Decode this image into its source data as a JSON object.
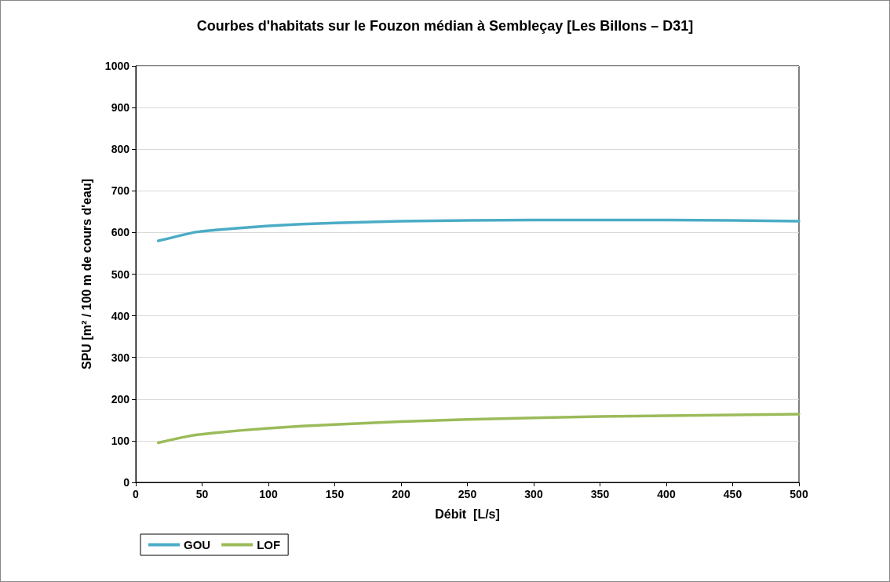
{
  "chart_data": {
    "type": "line",
    "title": "Courbes d'habitats sur le Fouzon médian à Sembleçay [Les Billons – D31]",
    "xlabel": "Débit  [L/s]",
    "ylabel": "SPU [m² / 100 m de cours d'eau]",
    "x": [
      17,
      25,
      35,
      45,
      60,
      80,
      100,
      125,
      150,
      200,
      250,
      300,
      350,
      400,
      450,
      500
    ],
    "series": [
      {
        "name": "GOU",
        "color": "#4bacc6",
        "values": [
          580,
          586,
          594,
          601,
          606,
          611,
          616,
          620,
          623,
          627,
          629,
          630,
          630,
          630,
          629,
          627
        ]
      },
      {
        "name": "LOF",
        "color": "#9bbb59",
        "values": [
          95,
          101,
          108,
          114,
          119,
          125,
          130,
          135,
          139,
          146,
          151,
          155,
          158,
          160,
          162,
          164
        ]
      }
    ],
    "xlim": [
      0,
      500
    ],
    "xticks": [
      0,
      50,
      100,
      150,
      200,
      250,
      300,
      350,
      400,
      450,
      500
    ],
    "ylim": [
      0,
      1000
    ],
    "yticks": [
      0,
      100,
      200,
      300,
      400,
      500,
      600,
      700,
      800,
      900,
      1000
    ],
    "grid": "y",
    "legend": "bottom left",
    "marker": "none",
    "line_style": "solid"
  }
}
